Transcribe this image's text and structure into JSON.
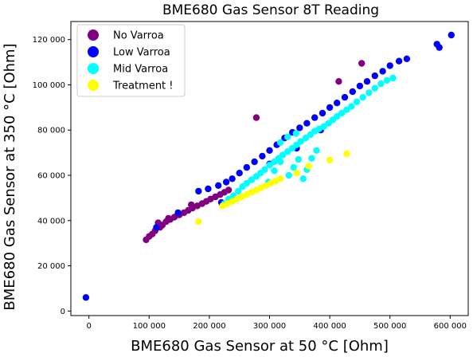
{
  "chart_data": {
    "type": "scatter",
    "title": "BME680 Gas Sensor 8T Reading",
    "xlabel": "BME680 Gas Sensor at 50 °C [Ohm]",
    "ylabel": "BME680 Gas Sensor at 350 °C [Ohm]",
    "xlim": [
      -30000,
      630000
    ],
    "ylim": [
      -2000,
      128000
    ],
    "xticks": [
      0,
      100000,
      200000,
      300000,
      400000,
      500000,
      600000
    ],
    "xtick_labels": [
      "0",
      "100 000",
      "200 000",
      "300 000",
      "400 000",
      "500 000",
      "600 000"
    ],
    "yticks": [
      0,
      20000,
      40000,
      60000,
      80000,
      100000,
      120000
    ],
    "ytick_labels": [
      "0",
      "20 000",
      "40 000",
      "60 000",
      "80 000",
      "100 000",
      "120 000"
    ],
    "grid": false,
    "legend": "top-left",
    "series": [
      {
        "name": "No Varroa",
        "color": "#800080",
        "points": [
          [
            95000,
            31500
          ],
          [
            100000,
            33000
          ],
          [
            105000,
            34000
          ],
          [
            110000,
            35500
          ],
          [
            118000,
            37000
          ],
          [
            122000,
            38000
          ],
          [
            128000,
            39500
          ],
          [
            135000,
            40500
          ],
          [
            142000,
            41500
          ],
          [
            150000,
            42500
          ],
          [
            158000,
            43500
          ],
          [
            165000,
            44500
          ],
          [
            172000,
            45500
          ],
          [
            180000,
            46500
          ],
          [
            188000,
            47500
          ],
          [
            195000,
            48500
          ],
          [
            202000,
            49500
          ],
          [
            210000,
            50500
          ],
          [
            218000,
            51500
          ],
          [
            225000,
            52500
          ],
          [
            232000,
            53500
          ],
          [
            115000,
            39000
          ],
          [
            132000,
            41000
          ],
          [
            148000,
            43000
          ],
          [
            170000,
            47000
          ],
          [
            278000,
            85500
          ],
          [
            415000,
            101500
          ],
          [
            453000,
            109500
          ]
        ]
      },
      {
        "name": "Low Varroa",
        "color": "#0000ff",
        "points": [
          [
            -5000,
            6000
          ],
          [
            112000,
            37000
          ],
          [
            148000,
            43500
          ],
          [
            182000,
            53000
          ],
          [
            198000,
            54000
          ],
          [
            215000,
            55500
          ],
          [
            228000,
            57000
          ],
          [
            238000,
            58500
          ],
          [
            250000,
            61000
          ],
          [
            262000,
            63500
          ],
          [
            275000,
            66000
          ],
          [
            288000,
            68500
          ],
          [
            300000,
            71000
          ],
          [
            312000,
            73500
          ],
          [
            325000,
            76500
          ],
          [
            338000,
            79000
          ],
          [
            350000,
            81000
          ],
          [
            362000,
            83000
          ],
          [
            375000,
            85500
          ],
          [
            388000,
            87500
          ],
          [
            400000,
            90000
          ],
          [
            412000,
            92000
          ],
          [
            425000,
            94500
          ],
          [
            438000,
            97000
          ],
          [
            450000,
            99500
          ],
          [
            462000,
            101500
          ],
          [
            475000,
            104000
          ],
          [
            488000,
            106000
          ],
          [
            500000,
            108500
          ],
          [
            515000,
            110500
          ],
          [
            528000,
            111500
          ],
          [
            220000,
            48000
          ],
          [
            300000,
            65000
          ],
          [
            345000,
            72000
          ],
          [
            385000,
            80000
          ],
          [
            578000,
            118000
          ],
          [
            582000,
            116500
          ],
          [
            602000,
            122000
          ]
        ]
      },
      {
        "name": "Mid Varroa",
        "color": "#00ffff",
        "points": [
          [
            225000,
            47500
          ],
          [
            232000,
            49500
          ],
          [
            240000,
            51000
          ],
          [
            248000,
            53000
          ],
          [
            255000,
            55000
          ],
          [
            262000,
            56500
          ],
          [
            270000,
            58000
          ],
          [
            278000,
            59500
          ],
          [
            285000,
            61000
          ],
          [
            292000,
            62500
          ],
          [
            300000,
            64500
          ],
          [
            308000,
            66000
          ],
          [
            315000,
            67500
          ],
          [
            322000,
            69000
          ],
          [
            330000,
            70500
          ],
          [
            338000,
            72000
          ],
          [
            345000,
            73500
          ],
          [
            352000,
            75000
          ],
          [
            360000,
            76500
          ],
          [
            368000,
            78000
          ],
          [
            375000,
            79500
          ],
          [
            382000,
            80500
          ],
          [
            390000,
            81500
          ],
          [
            398000,
            83000
          ],
          [
            405000,
            84500
          ],
          [
            412000,
            86000
          ],
          [
            420000,
            87500
          ],
          [
            428000,
            89000
          ],
          [
            436000,
            90500
          ],
          [
            445000,
            92500
          ],
          [
            455000,
            94500
          ],
          [
            465000,
            96500
          ],
          [
            475000,
            98500
          ],
          [
            485000,
            100500
          ],
          [
            495000,
            102000
          ],
          [
            505000,
            103000
          ],
          [
            298000,
            57000
          ],
          [
            308000,
            62000
          ],
          [
            318000,
            66000
          ],
          [
            332000,
            60000
          ],
          [
            340000,
            63500
          ],
          [
            348000,
            67000
          ],
          [
            356000,
            58500
          ],
          [
            362000,
            62500
          ],
          [
            370000,
            67500
          ],
          [
            378000,
            71000
          ],
          [
            318000,
            74500
          ],
          [
            330000,
            77000
          ],
          [
            344000,
            78500
          ]
        ]
      },
      {
        "name": "Treatment !",
        "color": "#ffff00",
        "points": [
          [
            182000,
            39500
          ],
          [
            222000,
            46500
          ],
          [
            230000,
            47500
          ],
          [
            238000,
            48500
          ],
          [
            246000,
            49500
          ],
          [
            254000,
            50500
          ],
          [
            262000,
            51500
          ],
          [
            270000,
            52500
          ],
          [
            278000,
            53500
          ],
          [
            286000,
            54500
          ],
          [
            294000,
            55500
          ],
          [
            302000,
            56500
          ],
          [
            310000,
            57500
          ],
          [
            318000,
            58500
          ],
          [
            345000,
            61000
          ],
          [
            365000,
            64000
          ],
          [
            400000,
            66800
          ],
          [
            428000,
            69500
          ]
        ]
      }
    ]
  }
}
